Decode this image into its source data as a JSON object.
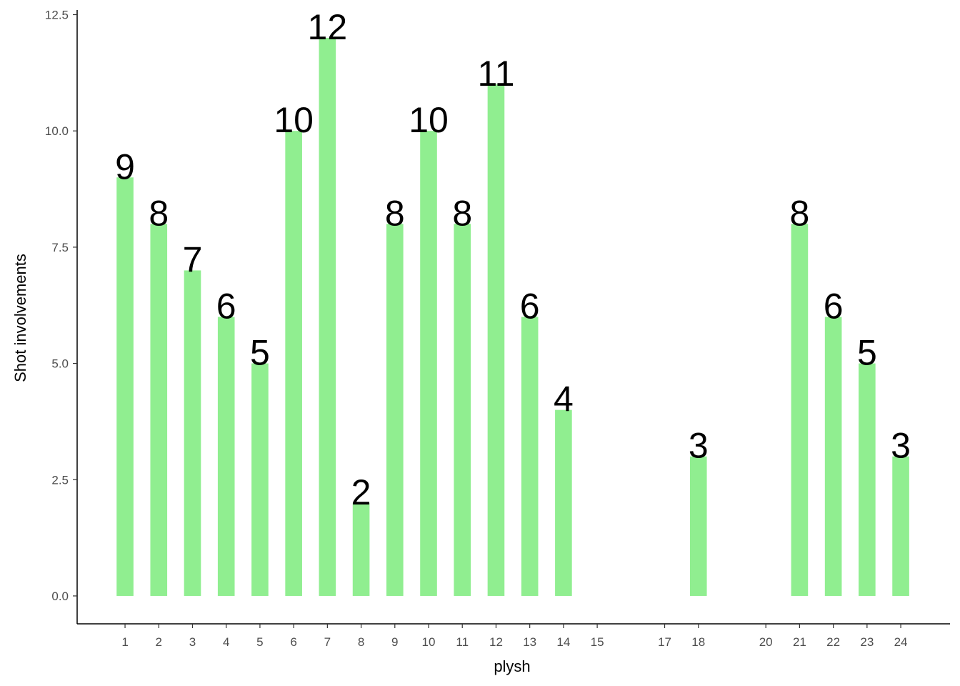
{
  "chart_data": {
    "type": "bar",
    "x_label": "plysh",
    "y_label": "Shot involvements",
    "x": [
      1,
      2,
      3,
      4,
      5,
      6,
      7,
      8,
      9,
      10,
      11,
      12,
      13,
      14,
      18,
      21,
      22,
      23,
      24
    ],
    "values": [
      9,
      8,
      7,
      6,
      5,
      10,
      12,
      2,
      8,
      10,
      8,
      11,
      6,
      4,
      3,
      8,
      6,
      5,
      3
    ],
    "color": "#90ee90",
    "xlim": [
      -0.42,
      25.46
    ],
    "xticks": [
      1,
      2,
      3,
      4,
      5,
      6,
      7,
      8,
      9,
      10,
      11,
      12,
      13,
      14,
      15,
      17,
      18,
      20,
      21,
      22,
      23,
      24
    ],
    "ylim": [
      -0.6,
      12.6
    ],
    "yticks": [
      {
        "value": 0,
        "label": "0.0"
      },
      2.5,
      {
        "value": 5,
        "label": "5.0"
      },
      7.5,
      {
        "value": 10,
        "label": "10.0"
      },
      12.5
    ],
    "grid": false
  }
}
